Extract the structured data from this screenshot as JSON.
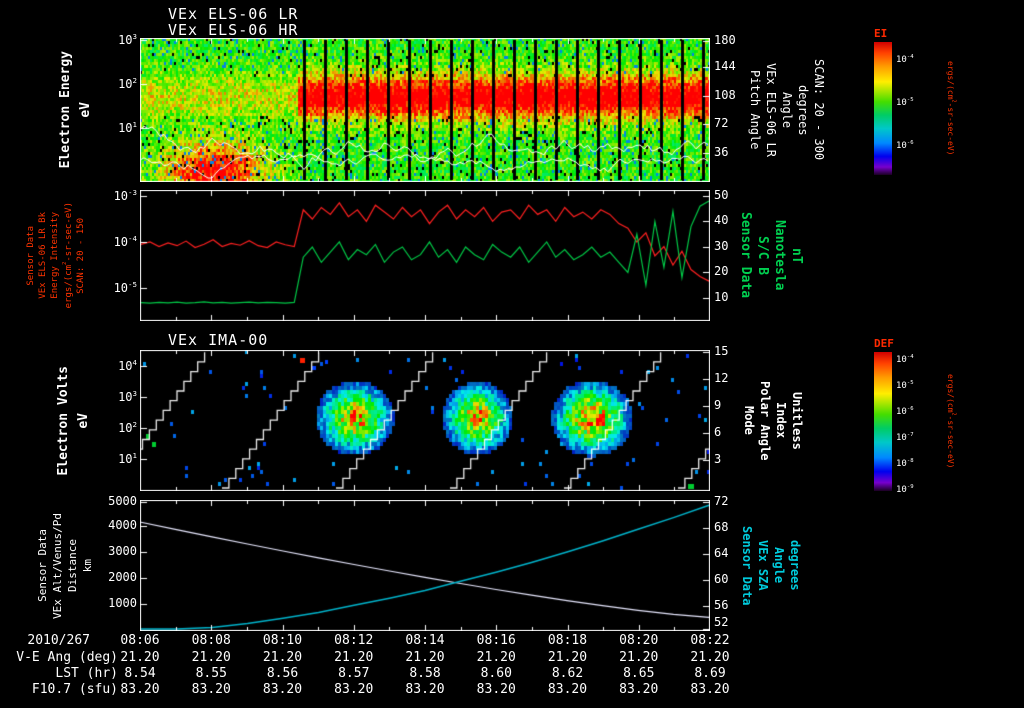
{
  "header": {
    "title_lr": "VEx ELS-06 LR",
    "title_hr": "VEx ELS-06 HR"
  },
  "panels": {
    "els": {
      "left_label_lines": [
        "Electron Energy",
        "eV"
      ],
      "left_ticks": [
        "10^3",
        "10^2",
        "10^1"
      ],
      "right_ticks": [
        "180",
        "144",
        "108",
        "72",
        "36"
      ],
      "right_label_lines": [
        "Pitch Angle",
        "VEx ELS-06 LR",
        "Angle",
        "degrees",
        "SCAN: 20 - 300"
      ],
      "colorbar": {
        "title": "EI",
        "ticks": [
          "10^-4",
          "10^-5",
          "10^-6"
        ],
        "unit": "ergs/(cm^2-sr-sec-eV)"
      }
    },
    "mag": {
      "left_label_lines": [
        "Sensor Data",
        "VEx ELS-06 LR Bk",
        "Energy Intensity",
        "ergs/(cm^2-sr-sec-eV)",
        "SCAN: 20 - 150"
      ],
      "left_ticks": [
        "10^-3",
        "10^-4",
        "10^-5"
      ],
      "right_ticks": [
        "50",
        "40",
        "30",
        "20",
        "10"
      ],
      "right_label_lines": [
        "Sensor Data",
        "S/C B",
        "Nanotesla",
        "nT"
      ]
    },
    "ima": {
      "title": "VEx IMA-00",
      "left_label_lines": [
        "Electron Volts",
        "eV"
      ],
      "left_ticks": [
        "10^4",
        "10^3",
        "10^2",
        "10^1"
      ],
      "right_ticks": [
        "15",
        "12",
        "9",
        "6",
        "3"
      ],
      "right_label_lines": [
        "Mode",
        "Polar Angle",
        "Index",
        "Unitless"
      ],
      "colorbar": {
        "title": "DEF",
        "ticks": [
          "10^-4",
          "10^-5",
          "10^-6",
          "10^-7",
          "10^-8",
          "10^-9"
        ],
        "unit": "ergs/(cm^2-sr-sec-eV)"
      }
    },
    "alt": {
      "left_label_lines": [
        "Sensor Data",
        "VEx Alt/Venus/Pd",
        "Distance",
        "km"
      ],
      "left_ticks": [
        "5000",
        "4000",
        "3000",
        "2000",
        "1000"
      ],
      "right_ticks": [
        "72",
        "68",
        "64",
        "60",
        "56",
        "52"
      ],
      "right_label_lines": [
        "Sensor Data",
        "VEx SZA",
        "Angle",
        "degrees"
      ]
    }
  },
  "xaxis": {
    "date": "2010/267",
    "times": [
      "08:06",
      "08:08",
      "08:10",
      "08:12",
      "08:14",
      "08:16",
      "08:18",
      "08:20",
      "08:22"
    ]
  },
  "footer_rows": [
    {
      "label": "V-E Ang (deg)",
      "values": [
        "21.20",
        "21.20",
        "21.20",
        "21.20",
        "21.20",
        "21.20",
        "21.20",
        "21.20",
        "21.20"
      ]
    },
    {
      "label": "LST (hr)",
      "values": [
        "8.54",
        "8.55",
        "8.56",
        "8.57",
        "8.58",
        "8.60",
        "8.62",
        "8.65",
        "8.69"
      ]
    },
    {
      "label": "F10.7 (sfu)",
      "values": [
        "83.20",
        "83.20",
        "83.20",
        "83.20",
        "83.20",
        "83.20",
        "83.20",
        "83.20",
        "83.20"
      ]
    }
  ],
  "colors": {
    "mag_red": "#ff2020",
    "mag_green": "#00c846",
    "alt_line": "#e8e8ff",
    "sza_line": "#00b4cc",
    "label_red": "#ff3300",
    "label_green": "#00d050",
    "label_cyan": "#00ccdd",
    "colorbar_title": "#ff2a00",
    "trace_white": "#ffffff"
  },
  "chart_data": [
    {
      "type": "heatmap",
      "title": "VEx ELS-06 LR/HR electron energy spectrogram",
      "x_axis": {
        "label": "UT 2010/267",
        "start": "08:06",
        "end": "08:22",
        "tick_step_min": 2
      },
      "y_axis": {
        "label": "Electron Energy (eV)",
        "scale": "log",
        "range": [
          8,
          2000
        ],
        "ticks": [
          10,
          100,
          1000
        ]
      },
      "z_axis": {
        "label": "EI ergs/(cm^2-sr-sec-eV)",
        "scale": "log",
        "range": [
          1e-06,
          0.0001
        ]
      },
      "right_axis": {
        "label": "Pitch Angle (degrees)",
        "range": [
          0,
          180
        ],
        "ticks": [
          36,
          72,
          108,
          144,
          180
        ],
        "note": "SCAN: 20 - 300"
      },
      "features": [
        "diffuse green flux across 10-1000 eV for whole interval",
        "low-energy (10-30 eV) orange enhancement before ~08:10",
        "intense red band ~50-300 eV (~1e-4) from ~08:10.5 to 08:22 interrupted by periodic narrow black data gaps",
        "jagged white spacecraft-potential trace near 20-40 eV"
      ]
    },
    {
      "type": "line",
      "x": {
        "label": "UT",
        "start": "08:06",
        "end": "08:22",
        "samples": 64,
        "spacing": "uniform"
      },
      "left_axis": {
        "label": "VEx ELS-06 LR Bk Energy Intensity (ergs/(cm^2-sr-sec-eV))",
        "scale": "log",
        "ticks_log10": [
          -3,
          -4,
          -5
        ]
      },
      "right_axis": {
        "label": "S/C B Nanotesla (nT)",
        "range": [
          0,
          52
        ],
        "ticks": [
          10,
          20,
          30,
          40,
          50
        ]
      },
      "series": [
        {
          "name": "ELS-06 LR Bk Energy Intensity",
          "axis": "left",
          "color": "#ff2020",
          "log10_values": [
            -4.05,
            -4.0,
            -4.1,
            -4.02,
            -4.08,
            -3.98,
            -4.12,
            -4.05,
            -3.95,
            -4.1,
            -4.03,
            -4.07,
            -3.97,
            -4.08,
            -4.12,
            -4.0,
            -4.06,
            -4.1,
            -3.3,
            -3.5,
            -3.25,
            -3.4,
            -3.15,
            -3.45,
            -3.3,
            -3.55,
            -3.2,
            -3.35,
            -3.5,
            -3.25,
            -3.45,
            -3.3,
            -3.6,
            -3.35,
            -3.2,
            -3.5,
            -3.3,
            -3.45,
            -3.25,
            -3.55,
            -3.35,
            -3.3,
            -3.5,
            -3.2,
            -3.4,
            -3.3,
            -3.55,
            -3.25,
            -3.45,
            -3.35,
            -3.5,
            -3.3,
            -3.4,
            -3.6,
            -3.7,
            -4.0,
            -3.8,
            -4.3,
            -4.1,
            -4.5,
            -4.2,
            -4.6,
            -4.75,
            -4.85
          ]
        },
        {
          "name": "S/C B",
          "axis": "right",
          "color": "#00c846",
          "units": "nT",
          "values": [
            8.2,
            8.0,
            8.3,
            8.1,
            8.4,
            8.0,
            8.2,
            8.5,
            8.1,
            8.3,
            8.0,
            8.2,
            8.4,
            8.1,
            8.3,
            8.2,
            8.0,
            8.3,
            26,
            30,
            24,
            28,
            32,
            25,
            29,
            27,
            31,
            24,
            28,
            30,
            25,
            27,
            32,
            26,
            29,
            24,
            30,
            27,
            25,
            31,
            28,
            26,
            30,
            24,
            28,
            32,
            26,
            29,
            25,
            27,
            30,
            26,
            28,
            24,
            20,
            35,
            15,
            40,
            22,
            44,
            18,
            38,
            46,
            48
          ]
        }
      ]
    },
    {
      "type": "heatmap",
      "title": "VEx IMA-00 ion spectrogram",
      "x_axis": {
        "label": "UT 2010/267",
        "start": "08:06",
        "end": "08:22",
        "tick_step_min": 2
      },
      "y_axis": {
        "label": "Electron Volts (eV)",
        "scale": "log",
        "range": [
          10,
          20000
        ],
        "ticks": [
          10,
          100,
          1000,
          10000
        ]
      },
      "z_axis": {
        "label": "DEF ergs/(cm^2-sr-sec-eV)",
        "scale": "log",
        "range": [
          1e-09,
          0.0001
        ]
      },
      "right_axis": {
        "label": "Mode / Polar Angle Index (Unitless)",
        "range": [
          0,
          15
        ],
        "ticks": [
          3,
          6,
          9,
          12,
          15
        ]
      },
      "features": [
        "mostly empty (black) with sparse blue noise pixels",
        "three ion flux bursts ~08:11-08:13, ~08:14-08:16, ~08:17-08:19 centered 100-1000 eV with green/yellow cores and a red core in the third",
        "white stair-step polar-angle scan ramps repeating ~every 3.2 min",
        "isolated red pixel near 10 keV at ~08:11"
      ]
    },
    {
      "type": "line",
      "x": {
        "label": "UT",
        "start": "08:06",
        "end": "08:22",
        "samples": 17,
        "spacing": "uniform"
      },
      "left_axis": {
        "label": "VEx Alt/Venus/Pd Distance (km)",
        "range": [
          0,
          5000
        ],
        "ticks": [
          1000,
          2000,
          3000,
          4000,
          5000
        ]
      },
      "right_axis": {
        "label": "VEx SZA Angle (degrees)",
        "range": [
          52,
          72
        ],
        "ticks": [
          52,
          56,
          60,
          64,
          68,
          72
        ]
      },
      "series": [
        {
          "name": "VEx Alt/Venus/Pd Distance",
          "axis": "left",
          "color": "#e8e8ff",
          "units": "km",
          "values": [
            4150,
            3869,
            3592,
            3320,
            3054,
            2792,
            2537,
            2289,
            2046,
            1812,
            1585,
            1368,
            1162,
            968,
            790,
            633,
            520
          ]
        },
        {
          "name": "VEx SZA",
          "axis": "right",
          "color": "#00b4cc",
          "units": "degrees",
          "values": [
            52.0,
            52.2,
            52.7,
            53.3,
            54.1,
            55.0,
            56.1,
            57.2,
            58.4,
            59.8,
            61.2,
            62.7,
            64.3,
            66.0,
            67.8,
            69.6,
            71.5
          ]
        }
      ]
    }
  ]
}
